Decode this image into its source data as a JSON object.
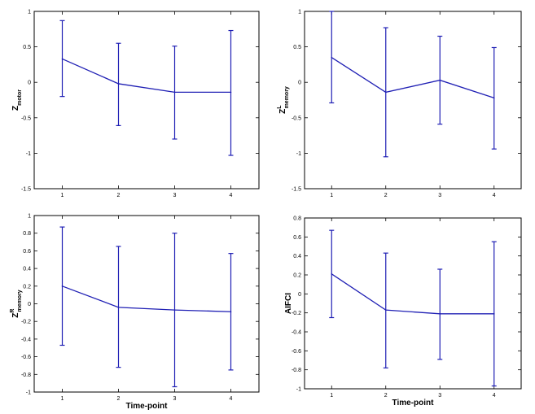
{
  "figure": {
    "line_color": "#1f1fb4"
  },
  "chart_data": [
    {
      "type": "line",
      "error_bars": true,
      "x": [
        1,
        2,
        3,
        4
      ],
      "xticks": [
        "1",
        "2",
        "3",
        "4"
      ],
      "xlim": [
        0.5,
        4.5
      ],
      "ylim": [
        -1.5,
        1
      ],
      "yticks": [
        "-1.5",
        "-1",
        "-0.5",
        "0",
        "0.5",
        "1"
      ],
      "yticks_values": [
        -1.5,
        -1,
        -0.5,
        0,
        0.5,
        1
      ],
      "values": [
        0.33,
        -0.02,
        -0.14,
        -0.14
      ],
      "err_low": [
        -0.2,
        -0.61,
        -0.8,
        -1.03
      ],
      "err_high": [
        0.87,
        0.55,
        0.51,
        0.73
      ],
      "ylabel_main": "Z",
      "ylabel_sub": "motor",
      "ylabel_sup": "",
      "xlabel": ""
    },
    {
      "type": "line",
      "error_bars": true,
      "x": [
        1,
        2,
        3,
        4
      ],
      "xticks": [
        "1",
        "2",
        "3",
        "4"
      ],
      "xlim": [
        0.5,
        4.5
      ],
      "ylim": [
        -1.5,
        1
      ],
      "yticks": [
        "-1.5",
        "-1",
        "-0.5",
        "0",
        "0.5",
        "1"
      ],
      "yticks_values": [
        -1.5,
        -1,
        -0.5,
        0,
        0.5,
        1
      ],
      "values": [
        0.35,
        -0.14,
        0.03,
        -0.22
      ],
      "err_low": [
        -0.29,
        -1.05,
        -0.59,
        -0.94
      ],
      "err_high": [
        1.0,
        0.77,
        0.65,
        0.49
      ],
      "ylabel_main": "Z",
      "ylabel_sub": "memory",
      "ylabel_sup": "L",
      "xlabel": ""
    },
    {
      "type": "line",
      "error_bars": true,
      "x": [
        1,
        2,
        3,
        4
      ],
      "xticks": [
        "1",
        "2",
        "3",
        "4"
      ],
      "xlim": [
        0.5,
        4.5
      ],
      "ylim": [
        -1,
        1
      ],
      "yticks": [
        "-1",
        "-0.8",
        "-0.6",
        "-0.4",
        "-0.2",
        "0",
        "0.2",
        "0.4",
        "0.6",
        "0.8",
        "1"
      ],
      "yticks_values": [
        -1,
        -0.8,
        -0.6,
        -0.4,
        -0.2,
        0,
        0.2,
        0.4,
        0.6,
        0.8,
        1
      ],
      "values": [
        0.2,
        -0.04,
        -0.07,
        -0.09
      ],
      "err_low": [
        -0.47,
        -0.72,
        -0.94,
        -0.75
      ],
      "err_high": [
        0.87,
        0.65,
        0.8,
        0.57
      ],
      "ylabel_main": "Z",
      "ylabel_sub": "memory",
      "ylabel_sup": "R",
      "xlabel": "Time-point"
    },
    {
      "type": "line",
      "error_bars": true,
      "x": [
        1,
        2,
        3,
        4
      ],
      "xticks": [
        "1",
        "2",
        "3",
        "4"
      ],
      "xlim": [
        0.5,
        4.5
      ],
      "ylim": [
        -1,
        0.8
      ],
      "yticks": [
        "-1",
        "-0.8",
        "-0.6",
        "-0.4",
        "-0.2",
        "0",
        "0.2",
        "0.4",
        "0.6",
        "0.8"
      ],
      "yticks_values": [
        -1,
        -0.8,
        -0.6,
        -0.4,
        -0.2,
        0,
        0.2,
        0.4,
        0.6,
        0.8
      ],
      "values": [
        0.21,
        -0.17,
        -0.21,
        -0.21
      ],
      "err_low": [
        -0.25,
        -0.78,
        -0.69,
        -0.97
      ],
      "err_high": [
        0.67,
        0.43,
        0.26,
        0.55
      ],
      "ylabel_main": "AIFCI",
      "ylabel_sub": "",
      "ylabel_sup": "",
      "xlabel": "Time-point"
    }
  ]
}
